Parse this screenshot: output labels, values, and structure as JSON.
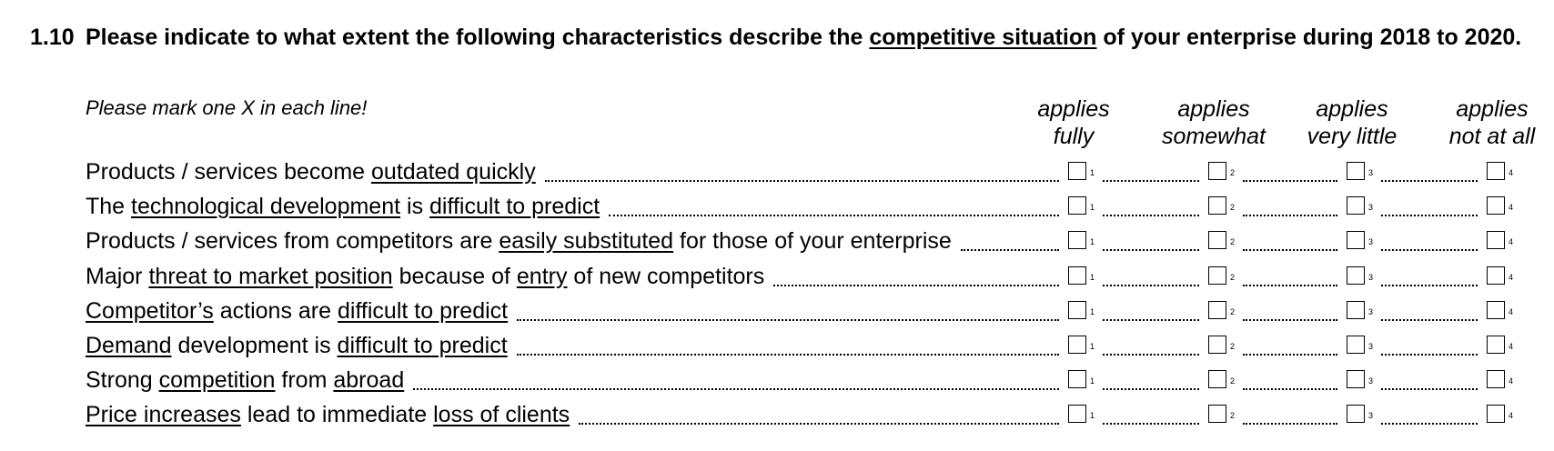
{
  "question": {
    "number": "1.10",
    "text_parts": [
      {
        "t": "Please indicate to what extent the following characteristics describe the ",
        "u": false
      },
      {
        "t": "competitive situation",
        "u": true
      },
      {
        "t": " of your enterprise during 2018 to 2020.",
        "u": false
      }
    ]
  },
  "instruction": "Please mark one X in each line!",
  "columns": [
    {
      "line1": "applies",
      "line2": "fully",
      "code": "1"
    },
    {
      "line1": "applies",
      "line2": "somewhat",
      "code": "2"
    },
    {
      "line1": "applies",
      "line2": "very little",
      "code": "3"
    },
    {
      "line1": "applies",
      "line2": "not at all",
      "code": "4"
    }
  ],
  "items": [
    {
      "parts": [
        {
          "t": "Products / services become ",
          "u": false
        },
        {
          "t": "outdated quickly",
          "u": true
        }
      ]
    },
    {
      "parts": [
        {
          "t": "The ",
          "u": false
        },
        {
          "t": "technological development",
          "u": true
        },
        {
          "t": " is ",
          "u": false
        },
        {
          "t": "difficult to predict",
          "u": true
        }
      ]
    },
    {
      "parts": [
        {
          "t": "Products / services from competitors are ",
          "u": false
        },
        {
          "t": "easily substituted",
          "u": true
        },
        {
          "t": " for those of your enterprise",
          "u": false
        }
      ]
    },
    {
      "parts": [
        {
          "t": "Major ",
          "u": false
        },
        {
          "t": "threat to market position",
          "u": true
        },
        {
          "t": " because of ",
          "u": false
        },
        {
          "t": "entry",
          "u": true
        },
        {
          "t": " of new competitors",
          "u": false
        }
      ]
    },
    {
      "parts": [
        {
          "t": "Competitor’s",
          "u": true
        },
        {
          "t": " actions are ",
          "u": false
        },
        {
          "t": "difficult to predict",
          "u": true
        }
      ]
    },
    {
      "parts": [
        {
          "t": "Demand",
          "u": true
        },
        {
          "t": " development is ",
          "u": false
        },
        {
          "t": "difficult to predict",
          "u": true
        }
      ]
    },
    {
      "parts": [
        {
          "t": "Strong ",
          "u": false
        },
        {
          "t": "competition",
          "u": true
        },
        {
          "t": " from ",
          "u": false
        },
        {
          "t": "abroad",
          "u": true
        }
      ]
    },
    {
      "parts": [
        {
          "t": "Price increases",
          "u": true
        },
        {
          "t": " lead to immediate ",
          "u": false
        },
        {
          "t": "loss of clients",
          "u": true
        }
      ]
    }
  ]
}
